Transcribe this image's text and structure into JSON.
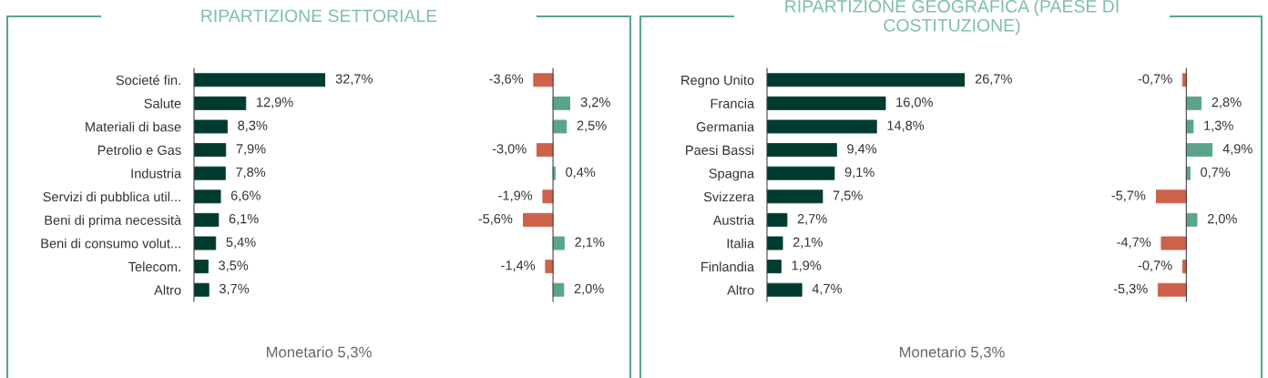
{
  "chart_data": [
    {
      "type": "bar",
      "title": "RIPARTIZIONE SETTORIALE",
      "orientation": "horizontal",
      "tick_labels": "y",
      "grid": false,
      "legend": false,
      "categories": [
        "Societé fin.",
        "Salute",
        "Materiali di base",
        "Petrolio e Gas",
        "Industria",
        "Servizi di pubblica util...",
        "Beni di prima necessità",
        "Beni di consumo volut...",
        "Telecom.",
        "Altro"
      ],
      "values": [
        32.7,
        12.9,
        8.3,
        7.9,
        7.8,
        6.6,
        6.1,
        5.4,
        3.5,
        3.7
      ],
      "value_labels": [
        "32,7%",
        "12,9%",
        "8,3%",
        "7,9%",
        "7,8%",
        "6,6%",
        "6,1%",
        "5,4%",
        "3,5%",
        "3,7%"
      ],
      "color": "#003b2f",
      "annotations": [
        "Monetario 5,3%"
      ]
    },
    {
      "type": "bar",
      "orientation": "horizontal",
      "tick_labels": false,
      "grid": false,
      "legend": false,
      "categories": [
        null,
        null,
        null,
        null,
        null,
        null,
        null,
        null,
        null,
        null
      ],
      "values": [
        -3.6,
        3.2,
        2.5,
        -3.0,
        0.4,
        -1.9,
        -5.6,
        2.1,
        -1.4,
        2.0
      ],
      "value_labels": [
        "-3,6%",
        "3,2%",
        "2,5%",
        "-3,0%",
        "0,4%",
        "-1,9%",
        "-5,6%",
        "2,1%",
        "-1,4%",
        "2,0%"
      ],
      "colors": [
        "#cd6149",
        "#5aa58a",
        "#5aa58a",
        "#cd6149",
        "#5aa58a",
        "#cd6149",
        "#cd6149",
        "#5aa58a",
        "#cd6149",
        "#5aa58a"
      ]
    },
    {
      "type": "bar",
      "title": "RIPARTIZIONE GEOGRAFICA (PAESE DI COSTITUZIONE)",
      "orientation": "horizontal",
      "tick_labels": "y",
      "grid": false,
      "legend": false,
      "categories": [
        "Regno Unito",
        "Francia",
        "Germania",
        "Paesi Bassi",
        "Spagna",
        "Svizzera",
        "Austria",
        "Italia",
        "Finlandia",
        "Altro"
      ],
      "values": [
        26.7,
        16.0,
        14.8,
        9.4,
        9.1,
        7.5,
        2.7,
        2.1,
        1.9,
        4.7
      ],
      "value_labels": [
        "26,7%",
        "16,0%",
        "14,8%",
        "9,4%",
        "9,1%",
        "7,5%",
        "2,7%",
        "2,1%",
        "1,9%",
        "4,7%"
      ],
      "color": "#003b2f",
      "annotations": [
        "Monetario 5,3%"
      ]
    },
    {
      "type": "bar",
      "orientation": "horizontal",
      "tick_labels": false,
      "grid": false,
      "legend": false,
      "categories": [
        null,
        null,
        null,
        null,
        null,
        null,
        null,
        null,
        null,
        null
      ],
      "values": [
        -0.7,
        2.8,
        1.3,
        4.9,
        0.7,
        -5.7,
        2.0,
        -4.7,
        -0.7,
        -5.3
      ],
      "value_labels": [
        "-0,7%",
        "2,8%",
        "1,3%",
        "4,9%",
        "0,7%",
        "-5,7%",
        "2,0%",
        "-4,7%",
        "-0,7%",
        "-5,3%"
      ],
      "colors": [
        "#cd6149",
        "#5aa58a",
        "#5aa58a",
        "#5aa58a",
        "#5aa58a",
        "#cd6149",
        "#5aa58a",
        "#cd6149",
        "#cd6149",
        "#cd6149"
      ]
    }
  ]
}
